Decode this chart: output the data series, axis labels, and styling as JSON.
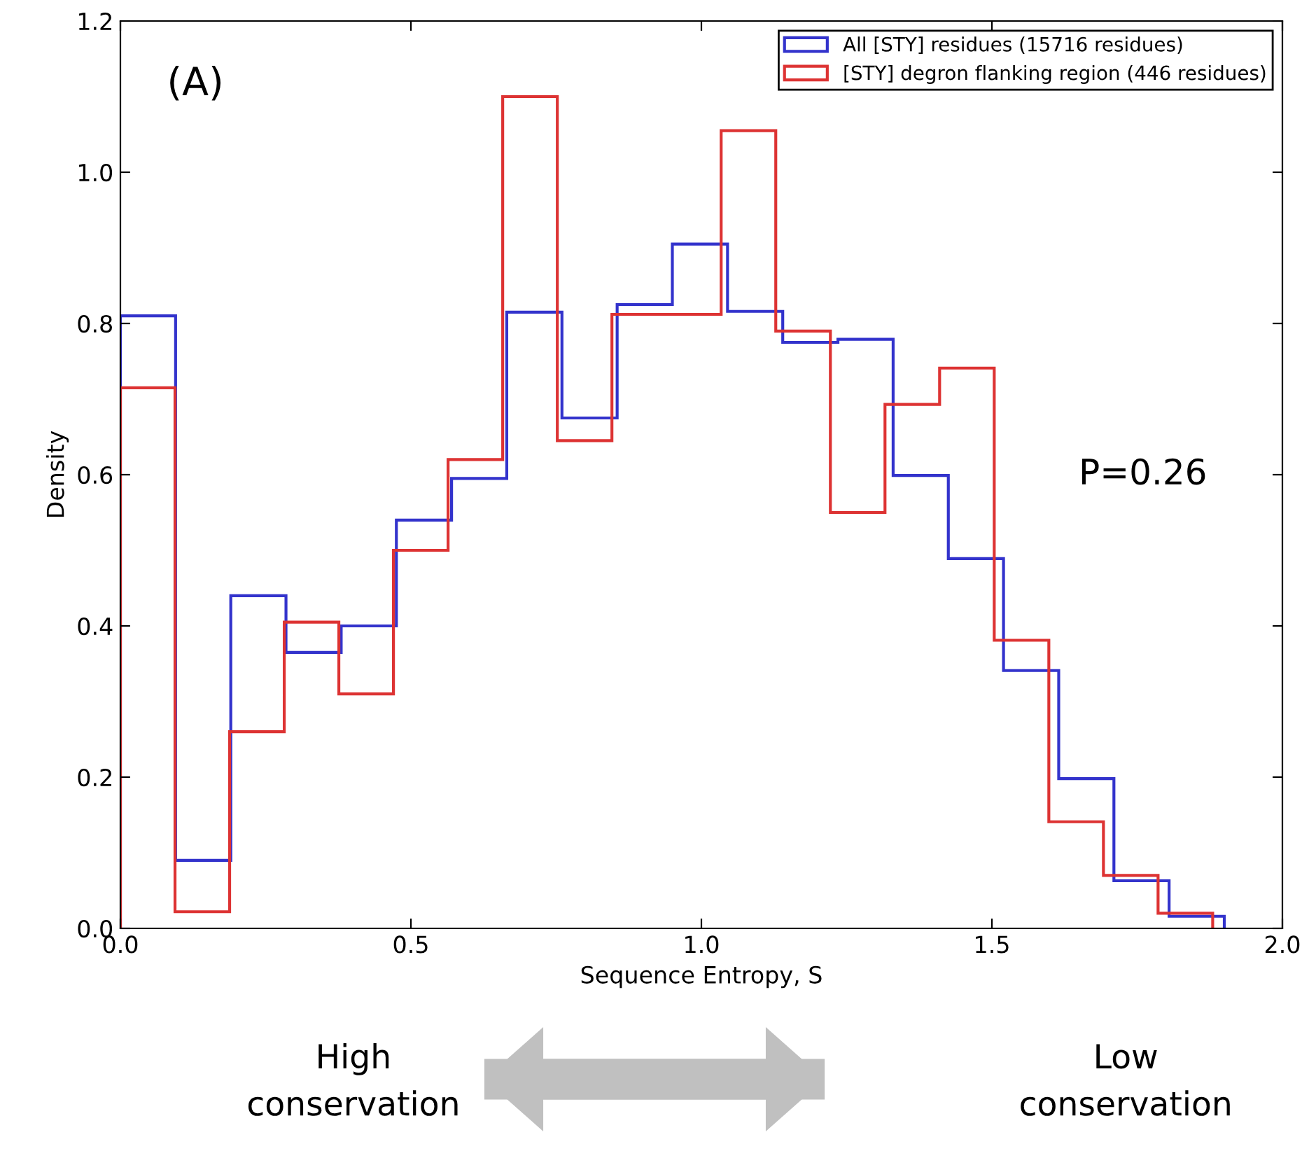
{
  "chart_data": {
    "type": "histogram",
    "xlabel": "Sequence Entropy, S",
    "ylabel": "Density",
    "bins": [
      0.0,
      0.095,
      0.19,
      0.285,
      0.38,
      0.475,
      0.57,
      0.665,
      0.76,
      0.855,
      0.95,
      1.045,
      1.14,
      1.235,
      1.33,
      1.425,
      1.52,
      1.615,
      1.71,
      1.805,
      1.9
    ],
    "series": [
      {
        "name": "All [STY] residues (15716 residues)",
        "color": "#3333cc",
        "values": [
          0.81,
          0.09,
          0.44,
          0.365,
          0.4,
          0.54,
          0.595,
          0.815,
          0.675,
          0.825,
          0.905,
          0.816,
          0.775,
          0.779,
          0.599,
          0.489,
          0.341,
          0.198,
          0.063,
          0.016
        ]
      },
      {
        "name": "[STY] degron flanking region (446 residues)",
        "color": "#dd3333",
        "bins": [
          0.0,
          0.094,
          0.188,
          0.282,
          0.376,
          0.47,
          0.564,
          0.658,
          0.752,
          0.846,
          0.94,
          1.034,
          1.128,
          1.222,
          1.316,
          1.41,
          1.504,
          1.598,
          1.692,
          1.786,
          1.88
        ],
        "values": [
          0.715,
          0.022,
          0.26,
          0.405,
          0.31,
          0.5,
          0.62,
          1.1,
          0.645,
          0.812,
          0.812,
          1.055,
          0.79,
          0.55,
          0.693,
          0.741,
          0.381,
          0.141,
          0.07,
          0.02
        ]
      }
    ],
    "xlim": [
      0,
      2
    ],
    "ylim": [
      0,
      1.2
    ],
    "xticks": [
      {
        "value": 0,
        "label": "0.0"
      },
      0.5,
      {
        "value": 1,
        "label": "1.0"
      },
      1.5,
      {
        "value": 2,
        "label": "2.0"
      }
    ],
    "yticks": [
      {
        "value": 0,
        "label": "0.0"
      },
      0.2,
      0.4,
      0.6,
      0.8,
      {
        "value": 1,
        "label": "1.0"
      },
      1.2
    ],
    "grid": false,
    "legend": "top right",
    "annotations": [
      "(A)",
      "P=0.26",
      "High\nconservation",
      "Low\nconservation"
    ]
  }
}
